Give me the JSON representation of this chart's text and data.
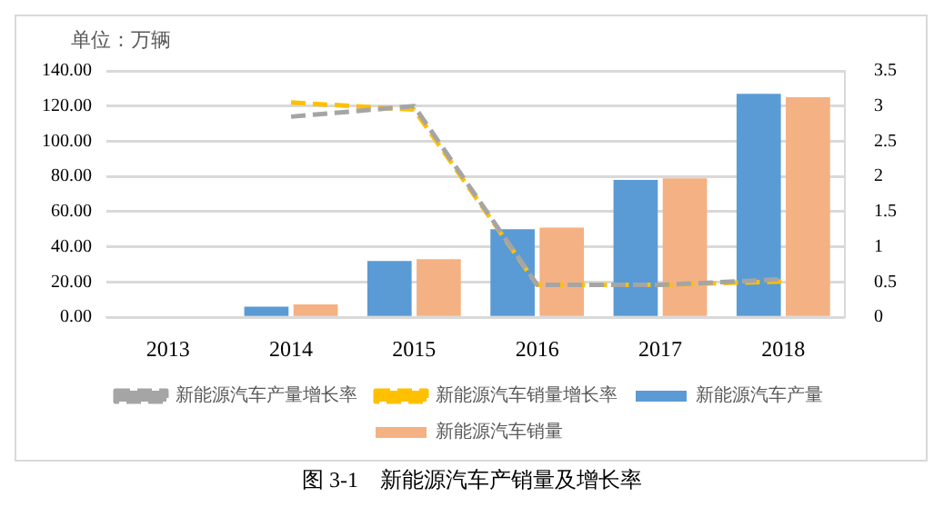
{
  "chart_data": {
    "type": "bar",
    "title": "图 3-1　新能源汽车产销量及增长率",
    "ylabel": "单位：万辆",
    "categories": [
      "2013",
      "2014",
      "2015",
      "2016",
      "2017",
      "2018"
    ],
    "series": [
      {
        "name": "新能源汽车产量",
        "color": "#5b9bd5",
        "values": [
          null,
          6,
          32,
          50,
          78,
          127
        ]
      },
      {
        "name": "新能源汽车销量",
        "color": "#f4b183",
        "values": [
          null,
          7.3,
          33,
          51,
          79,
          125
        ]
      },
      {
        "name": "新能源汽车产量增长率",
        "type": "line",
        "axis": "y2",
        "color": "#a5a5a5",
        "line_style": "dashed",
        "values": [
          null,
          2.85,
          3.0,
          0.46,
          0.46,
          0.54
        ]
      },
      {
        "name": "新能源汽车销量增长率",
        "type": "line",
        "axis": "y2",
        "color": "#ffc000",
        "line_style": "dashed",
        "values": [
          null,
          3.05,
          2.95,
          0.46,
          0.46,
          0.51
        ]
      }
    ],
    "ylim": [
      0,
      140
    ],
    "yticks": [
      {
        "value": 0,
        "label": "0.00"
      },
      {
        "value": 20,
        "label": "20.00"
      },
      {
        "value": 40,
        "label": "40.00"
      },
      {
        "value": 60,
        "label": "60.00"
      },
      {
        "value": 80,
        "label": "80.00"
      },
      {
        "value": 100,
        "label": "100.00"
      },
      {
        "value": 120,
        "label": "120.00"
      },
      {
        "value": 140,
        "label": "140.00"
      }
    ],
    "y2lim": [
      0,
      3.5
    ],
    "y2ticks": [
      0,
      0.5,
      1,
      1.5,
      2,
      2.5,
      3,
      3.5
    ],
    "grid": "y",
    "legend": "bottom",
    "marker": "none"
  }
}
